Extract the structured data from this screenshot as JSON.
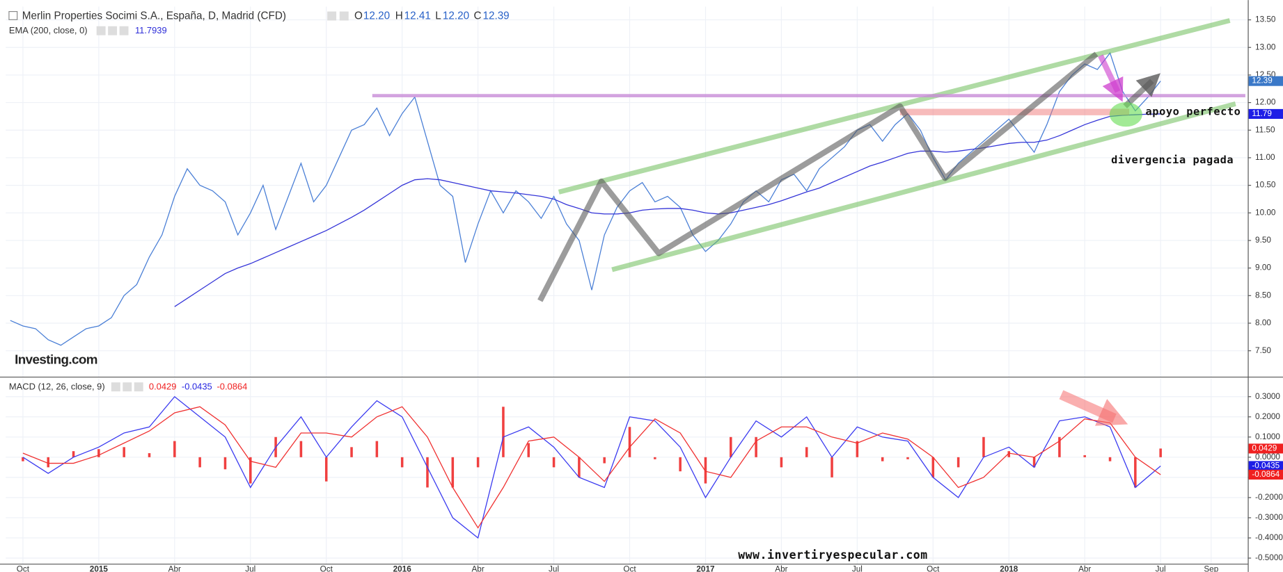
{
  "chart_data": [
    {
      "type": "line",
      "title": "Merlin Properties Socimi S.A., España, D, Madrid (CFD)",
      "ohlc": [
        {
          "name": "O",
          "text": "12.20"
        },
        {
          "name": "H",
          "text": "12.41"
        },
        {
          "name": "L",
          "text": "12.20"
        },
        {
          "name": "C",
          "text": "12.39"
        }
      ],
      "logo": "Investing.com",
      "annotations": [
        "apoyo perfecto",
        "divergencia pagada"
      ],
      "x": [
        -0.5,
        0,
        0.5,
        1,
        1.5,
        2,
        2.5,
        3,
        3.5,
        4,
        4.5,
        5,
        5.5,
        6,
        6.5,
        7,
        7.5,
        8,
        8.5,
        9,
        9.5,
        10,
        10.5,
        11,
        11.5,
        12,
        12.5,
        13,
        13.5,
        14,
        14.5,
        15,
        15.5,
        16,
        16.5,
        17,
        17.5,
        18,
        18.5,
        19,
        19.5,
        20,
        20.5,
        21,
        21.5,
        22,
        22.5,
        23,
        23.5,
        24,
        24.5,
        25,
        25.5,
        26,
        26.5,
        27,
        27.5,
        28,
        28.5,
        29,
        29.5,
        30,
        30.5,
        31,
        31.5,
        32,
        32.5,
        33,
        33.5,
        34,
        34.5,
        35,
        35.5,
        36,
        36.5,
        37,
        37.5,
        38,
        38.5,
        39,
        39.5,
        40,
        40.5,
        41,
        41.5,
        42,
        42.5,
        43,
        43.5,
        44,
        44.5,
        45
      ],
      "series": [
        {
          "color": "#4a7fd6",
          "tag": "12.39",
          "tag_color": "#3a78c8",
          "values": [
            8.05,
            7.95,
            7.9,
            7.7,
            7.6,
            7.75,
            7.9,
            7.95,
            8.1,
            8.5,
            8.7,
            9.2,
            9.6,
            10.3,
            10.8,
            10.5,
            10.4,
            10.2,
            9.6,
            10.0,
            10.5,
            9.7,
            10.3,
            10.9,
            10.2,
            10.5,
            11.0,
            11.5,
            11.6,
            11.9,
            11.4,
            11.8,
            12.1,
            11.3,
            10.5,
            10.3,
            9.1,
            9.8,
            10.4,
            10.0,
            10.4,
            10.2,
            9.9,
            10.3,
            9.8,
            9.5,
            8.6,
            9.6,
            10.1,
            10.4,
            10.55,
            10.2,
            10.3,
            10.1,
            9.6,
            9.3,
            9.5,
            9.8,
            10.2,
            10.4,
            10.2,
            10.6,
            10.7,
            10.4,
            10.8,
            11.0,
            11.2,
            11.5,
            11.6,
            11.3,
            11.6,
            11.8,
            11.5,
            11.0,
            10.6,
            10.9,
            11.1,
            11.3,
            11.5,
            11.7,
            11.4,
            11.1,
            11.6,
            12.2,
            12.5,
            12.7,
            12.6,
            12.9,
            12.2,
            11.85,
            12.1,
            12.39
          ]
        },
        {
          "name": "EMA (200, close, 0)",
          "color": "#3434d8",
          "legend_value": "11.7939",
          "tag": "11.79",
          "tag_color": "#1e1ee6",
          "values": [
            null,
            null,
            null,
            null,
            null,
            null,
            null,
            null,
            null,
            null,
            null,
            null,
            null,
            8.3,
            8.45,
            8.6,
            8.75,
            8.9,
            9.0,
            9.08,
            9.18,
            9.28,
            9.38,
            9.48,
            9.58,
            9.68,
            9.8,
            9.92,
            10.05,
            10.2,
            10.35,
            10.5,
            10.6,
            10.62,
            10.6,
            10.55,
            10.5,
            10.45,
            10.4,
            10.38,
            10.36,
            10.33,
            10.3,
            10.25,
            10.15,
            10.08,
            10.0,
            9.98,
            9.98,
            10.0,
            10.05,
            10.07,
            10.08,
            10.08,
            10.05,
            10.0,
            9.98,
            10.0,
            10.05,
            10.1,
            10.15,
            10.22,
            10.3,
            10.38,
            10.45,
            10.55,
            10.65,
            10.75,
            10.85,
            10.92,
            11.0,
            11.08,
            11.12,
            11.12,
            11.1,
            11.12,
            11.15,
            11.18,
            11.22,
            11.26,
            11.28,
            11.28,
            11.32,
            11.4,
            11.5,
            11.6,
            11.68,
            11.75,
            11.77,
            11.78,
            11.79,
            11.7939
          ]
        }
      ],
      "xlim": [
        -0.68,
        48.45
      ],
      "ylim": [
        7.03,
        13.74
      ],
      "yticks": [
        {
          "value": 7.5,
          "label": "7.50"
        },
        {
          "value": 8,
          "label": "8.00"
        },
        {
          "value": 8.5,
          "label": "8.50"
        },
        {
          "value": 9,
          "label": "9.00"
        },
        {
          "value": 9.5,
          "label": "9.50"
        },
        {
          "value": 10,
          "label": "10.00"
        },
        {
          "value": 10.5,
          "label": "10.50"
        },
        {
          "value": 11,
          "label": "11.00"
        },
        {
          "value": 11.5,
          "label": "11.50"
        },
        {
          "value": 12,
          "label": "12.00"
        },
        {
          "value": 12.5,
          "label": "12.50"
        },
        {
          "value": 13,
          "label": "13.00"
        },
        {
          "value": 13.5,
          "label": "13.50"
        }
      ],
      "grid": true
    },
    {
      "type": "line",
      "title": "MACD (12, 26, close, 9)",
      "annotations": [
        "www.invertiryespecular.com"
      ],
      "x": [
        0,
        1,
        2,
        3,
        4,
        5,
        6,
        7,
        8,
        9,
        10,
        11,
        12,
        13,
        14,
        15,
        16,
        17,
        18,
        19,
        20,
        21,
        22,
        23,
        24,
        25,
        26,
        27,
        28,
        29,
        30,
        31,
        32,
        33,
        34,
        35,
        36,
        37,
        38,
        39,
        40,
        41,
        42,
        43,
        44,
        45
      ],
      "series": [
        {
          "style": "histogram",
          "color": "#f04040",
          "legend_value": "0.0429",
          "tag": "0.0429",
          "tag_color": "#f02020",
          "values": [
            -0.02,
            -0.05,
            0.03,
            0.04,
            0.05,
            0.02,
            0.08,
            -0.05,
            -0.06,
            -0.13,
            0.1,
            0.08,
            -0.12,
            0.05,
            0.08,
            -0.05,
            -0.15,
            -0.15,
            -0.05,
            0.25,
            0.07,
            -0.05,
            -0.1,
            -0.03,
            0.15,
            -0.01,
            -0.07,
            -0.13,
            0.1,
            0.1,
            -0.05,
            0.05,
            -0.1,
            0.08,
            -0.02,
            -0.01,
            -0.1,
            -0.05,
            0.1,
            0.03,
            -0.05,
            0.1,
            0.01,
            -0.02,
            -0.15,
            0.0429
          ]
        },
        {
          "style": "line",
          "color": "#3a3af0",
          "legend_value": "-0.0435",
          "tag": "-0.0435",
          "tag_color": "#1e1ee6",
          "values": [
            0.0,
            -0.08,
            0.0,
            0.05,
            0.12,
            0.15,
            0.3,
            0.2,
            0.1,
            -0.15,
            0.05,
            0.2,
            0.0,
            0.15,
            0.28,
            0.2,
            -0.05,
            -0.3,
            -0.4,
            0.1,
            0.15,
            0.05,
            -0.1,
            -0.15,
            0.2,
            0.18,
            0.05,
            -0.2,
            0.0,
            0.18,
            0.1,
            0.2,
            0.0,
            0.15,
            0.1,
            0.08,
            -0.1,
            -0.2,
            0.0,
            0.05,
            -0.05,
            0.18,
            0.2,
            0.15,
            -0.15,
            -0.0435
          ]
        },
        {
          "style": "line",
          "color": "#f03030",
          "legend_value": "-0.0864",
          "tag": "-0.0864",
          "tag_color": "#f02020",
          "values": [
            0.02,
            -0.03,
            -0.03,
            0.01,
            0.07,
            0.13,
            0.22,
            0.25,
            0.16,
            -0.02,
            -0.05,
            0.12,
            0.12,
            0.1,
            0.2,
            0.25,
            0.1,
            -0.15,
            -0.35,
            -0.15,
            0.08,
            0.1,
            0.0,
            -0.12,
            0.05,
            0.19,
            0.12,
            -0.07,
            -0.1,
            0.08,
            0.15,
            0.15,
            0.1,
            0.07,
            0.12,
            0.09,
            0.0,
            -0.15,
            -0.1,
            0.02,
            0.0,
            0.08,
            0.19,
            0.17,
            0.0,
            -0.0864
          ]
        }
      ],
      "xlim": [
        -0.68,
        48.45
      ],
      "ylim": [
        -0.528,
        0.391
      ],
      "xticks": [
        {
          "value": 0,
          "label": "Oct"
        },
        {
          "value": 3,
          "label": "2015"
        },
        {
          "value": 6,
          "label": "Abr"
        },
        {
          "value": 9,
          "label": "Jul"
        },
        {
          "value": 12,
          "label": "Oct"
        },
        {
          "value": 15,
          "label": "2016"
        },
        {
          "value": 18,
          "label": "Abr"
        },
        {
          "value": 21,
          "label": "Jul"
        },
        {
          "value": 24,
          "label": "Oct"
        },
        {
          "value": 27,
          "label": "2017"
        },
        {
          "value": 30,
          "label": "Abr"
        },
        {
          "value": 33,
          "label": "Jul"
        },
        {
          "value": 36,
          "label": "Oct"
        },
        {
          "value": 39,
          "label": "2018"
        },
        {
          "value": 42,
          "label": "Abr"
        },
        {
          "value": 45,
          "label": "Jul"
        },
        {
          "value": 47,
          "label": "Sep"
        }
      ],
      "yticks": [
        {
          "value": 0.3,
          "label": "0.3000"
        },
        {
          "value": 0.2,
          "label": "0.2000"
        },
        {
          "value": 0.1,
          "label": "0.1000"
        },
        {
          "value": 0,
          "label": "0.0000"
        },
        {
          "value": -0.1,
          "label": "-0.1000"
        },
        {
          "value": -0.2,
          "label": "-0.2000"
        },
        {
          "value": -0.3,
          "label": "-0.3000"
        },
        {
          "value": -0.4,
          "label": "-0.4000"
        },
        {
          "value": -0.5,
          "label": "-0.5000"
        }
      ],
      "grid": true
    }
  ]
}
